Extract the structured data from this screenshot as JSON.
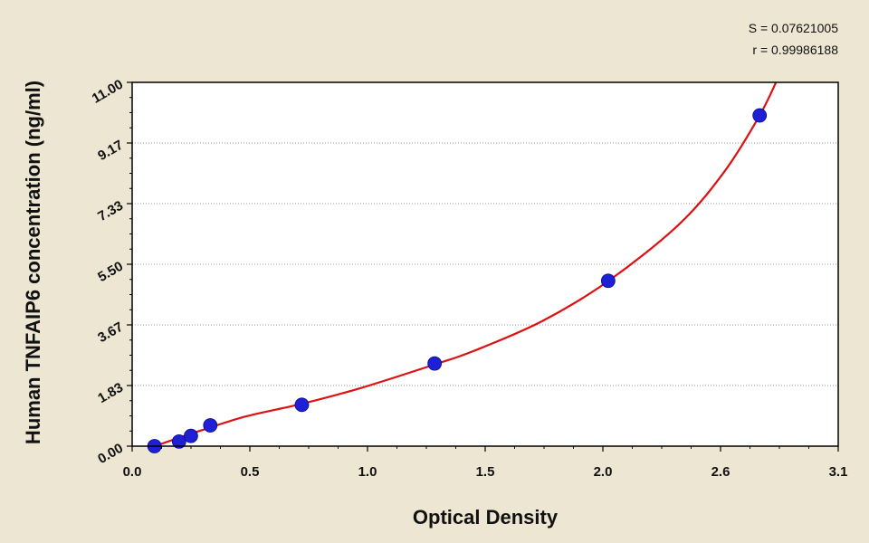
{
  "chart_data": {
    "type": "scatter",
    "title": "",
    "xlabel": "Optical Density",
    "ylabel": "Human TNFAIP6 concentration (ng/ml)",
    "xlim": [
      0,
      3.1
    ],
    "ylim": [
      0,
      11.0
    ],
    "x_ticks": [
      "0.0",
      "0.5",
      "1.0",
      "1.5",
      "2.0",
      "2.6",
      "3.1"
    ],
    "y_ticks": [
      "0.00",
      "1.83",
      "3.67",
      "5.50",
      "7.33",
      "9.17",
      "11.00"
    ],
    "grid": "horizontal-dotted",
    "annotations": [
      "S = 0.07621005",
      "r = 0.99986188"
    ],
    "series": [
      {
        "points": [
          {
            "x": 0.098,
            "y": 0.0
          },
          {
            "x": 0.206,
            "y": 0.14
          },
          {
            "x": 0.258,
            "y": 0.31
          },
          {
            "x": 0.343,
            "y": 0.63
          },
          {
            "x": 0.745,
            "y": 1.25
          },
          {
            "x": 1.328,
            "y": 2.5
          },
          {
            "x": 2.09,
            "y": 5.0
          },
          {
            "x": 2.755,
            "y": 10.0
          }
        ],
        "color": "#1f1fd6"
      }
    ],
    "fit_curve": {
      "color": "#dd1111",
      "points": [
        {
          "x": 0.098,
          "y": 0.0
        },
        {
          "x": 0.3,
          "y": 0.47
        },
        {
          "x": 0.5,
          "y": 0.9
        },
        {
          "x": 0.745,
          "y": 1.28
        },
        {
          "x": 1.0,
          "y": 1.75
        },
        {
          "x": 1.328,
          "y": 2.47
        },
        {
          "x": 1.5,
          "y": 2.88
        },
        {
          "x": 1.8,
          "y": 3.78
        },
        {
          "x": 2.09,
          "y": 4.99
        },
        {
          "x": 2.4,
          "y": 6.7
        },
        {
          "x": 2.6,
          "y": 8.3
        },
        {
          "x": 2.755,
          "y": 10.0
        },
        {
          "x": 2.84,
          "y": 11.2
        }
      ]
    }
  }
}
